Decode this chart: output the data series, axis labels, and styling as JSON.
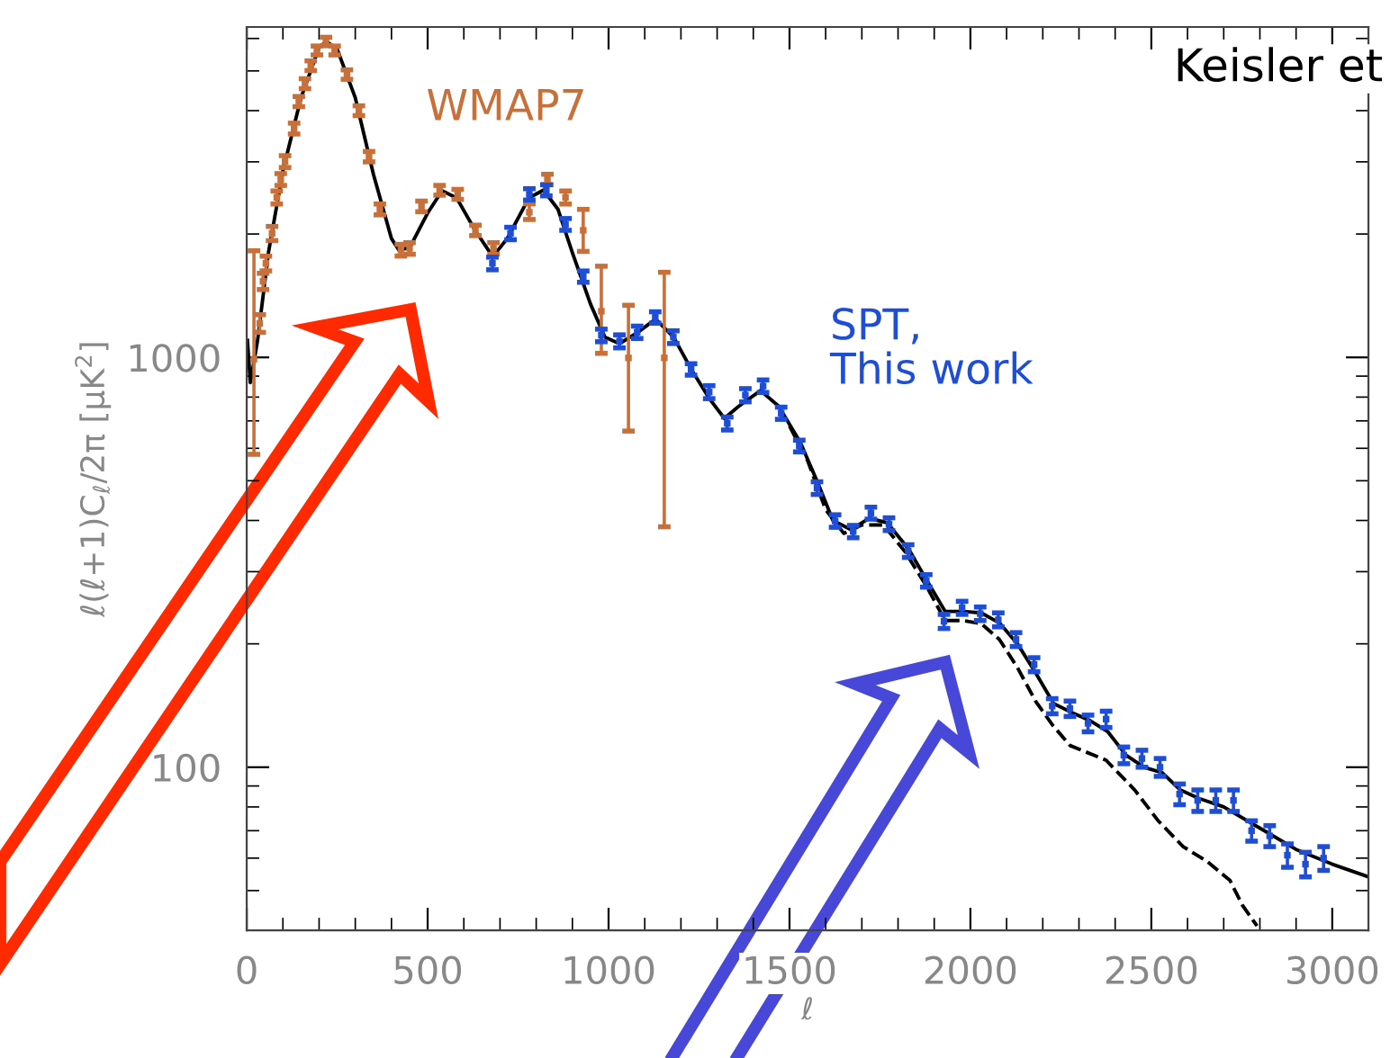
{
  "chart_data": {
    "type": "scatter",
    "ylabel": "ℓ(ℓ+1)C$_{ℓ}$/2π [μK$^{2}$]",
    "xlabel": "ℓ",
    "annotations": [
      "Keisler et"
    ],
    "log": "y",
    "xlim": [
      0,
      3100
    ],
    "xticks": [
      0,
      500,
      1000,
      1500,
      2000,
      2500,
      3000
    ],
    "ylim": [
      40,
      6400
    ],
    "yticks": [
      100,
      1000
    ],
    "series": [
      {
        "name": "WMAP7",
        "marker": "square",
        "color": "#c8703a",
        "x": [
          20,
          36,
          45,
          53,
          70,
          83,
          94,
          106,
          131,
          144,
          161,
          177,
          194,
          219,
          243,
          277,
          310,
          338,
          368,
          426,
          450,
          483,
          533,
          583,
          632,
          682,
          781,
          831,
          881,
          930,
          980,
          1055,
          1154
        ],
        "values": [
          990,
          1211,
          1534,
          1696,
          2007,
          2457,
          2718,
          3006,
          3618,
          4210,
          4656,
          5150,
          5610,
          5900,
          5610,
          4900,
          4000,
          3090,
          2297,
          1827,
          1845,
          2336,
          2558,
          2500,
          2042,
          1845,
          2260,
          2718,
          2457,
          2042,
          1296,
          997,
          997
        ],
        "errors": [
          [
            580,
            1820
          ],
          60,
          70,
          70,
          80,
          90,
          90,
          100,
          110,
          120,
          130,
          140,
          140,
          140,
          140,
          130,
          110,
          90,
          70,
          60,
          60,
          70,
          70,
          70,
          60,
          60,
          [
            2170,
            2370
          ],
          80,
          90,
          [
            1814,
            2297
          ],
          [
            1023,
            1669
          ],
          [
            661,
            1340
          ],
          [
            386,
            1613
          ]
        ]
      },
      {
        "name": "SPT,\nThis work",
        "marker": "square",
        "color": "#1f4ed6",
        "x": [
          679,
          729,
          781,
          828,
          881,
          930,
          980,
          1030,
          1079,
          1129,
          1179,
          1228,
          1278,
          1328,
          1378,
          1427,
          1477,
          1527,
          1576,
          1626,
          1676,
          1725,
          1775,
          1828,
          1878,
          1927,
          1977,
          2027,
          2077,
          2126,
          2176,
          2226,
          2275,
          2325,
          2375,
          2424,
          2474,
          2524,
          2578,
          2628,
          2678,
          2727,
          2777,
          2827,
          2876,
          2926,
          2976
        ],
        "values": [
          1696,
          2007,
          2500,
          2558,
          2112,
          1575,
          1132,
          1095,
          1152,
          1252,
          1121,
          935,
          823,
          690,
          809,
          851,
          731,
          608,
          480,
          399,
          376,
          417,
          392,
          337,
          285,
          227,
          245,
          237,
          229,
          205,
          178,
          141,
          139,
          128,
          131,
          107,
          105,
          100,
          86,
          83,
          83,
          83,
          70,
          68,
          61,
          58,
          60
        ],
        "errors": [
          60,
          70,
          80,
          80,
          70,
          50,
          40,
          40,
          40,
          40,
          40,
          30,
          30,
          25,
          30,
          30,
          25,
          20,
          17,
          14,
          13,
          14,
          14,
          12,
          10,
          9,
          9,
          9,
          9,
          8,
          7,
          6,
          6,
          6,
          6,
          5,
          5,
          5,
          5,
          5,
          5,
          5,
          4,
          4,
          4,
          4,
          4
        ]
      },
      {
        "type": "line",
        "line_style": "solid",
        "color": "#000000",
        "x": [
          2,
          10,
          30,
          60,
          100,
          150,
          200,
          220,
          250,
          300,
          350,
          400,
          420,
          450,
          500,
          540,
          580,
          630,
          680,
          720,
          780,
          820,
          860,
          900,
          950,
          990,
          1030,
          1080,
          1130,
          1180,
          1230,
          1280,
          1320,
          1360,
          1420,
          1470,
          1530,
          1580,
          1620,
          1670,
          1720,
          1770,
          1830,
          1880,
          1930,
          1980,
          2030,
          2080,
          2130,
          2180,
          2230,
          2280,
          2330,
          2380,
          2430,
          2480,
          2530,
          2580,
          2630,
          2700,
          2800,
          2900,
          3000,
          3100
        ],
        "values": [
          1100,
          868,
          1100,
          1800,
          2850,
          4300,
          5700,
          5900,
          5650,
          4300,
          2800,
          1950,
          1830,
          1850,
          2250,
          2550,
          2450,
          2050,
          1760,
          1950,
          2450,
          2560,
          2300,
          1800,
          1350,
          1120,
          1080,
          1150,
          1240,
          1120,
          930,
          790,
          710,
          760,
          830,
          760,
          620,
          490,
          400,
          380,
          405,
          395,
          340,
          285,
          240,
          240,
          238,
          225,
          200,
          170,
          143,
          136,
          130,
          122,
          107,
          100,
          97,
          88,
          84,
          80,
          71,
          63,
          58,
          54
        ]
      },
      {
        "type": "line",
        "line_style": "dashed",
        "color": "#000000",
        "x": [
          1500,
          1550,
          1600,
          1650,
          1700,
          1760,
          1820,
          1880,
          1930,
          1980,
          2030,
          2080,
          2130,
          2180,
          2226,
          2275,
          2375,
          2454,
          2519,
          2588,
          2653,
          2717,
          2752,
          2792
        ],
        "values": [
          680,
          560,
          425,
          372,
          390,
          390,
          335,
          275,
          228,
          228,
          224,
          205,
          175,
          145,
          127,
          113,
          104,
          88,
          74,
          64,
          59,
          53,
          46,
          41
        ]
      }
    ]
  }
}
